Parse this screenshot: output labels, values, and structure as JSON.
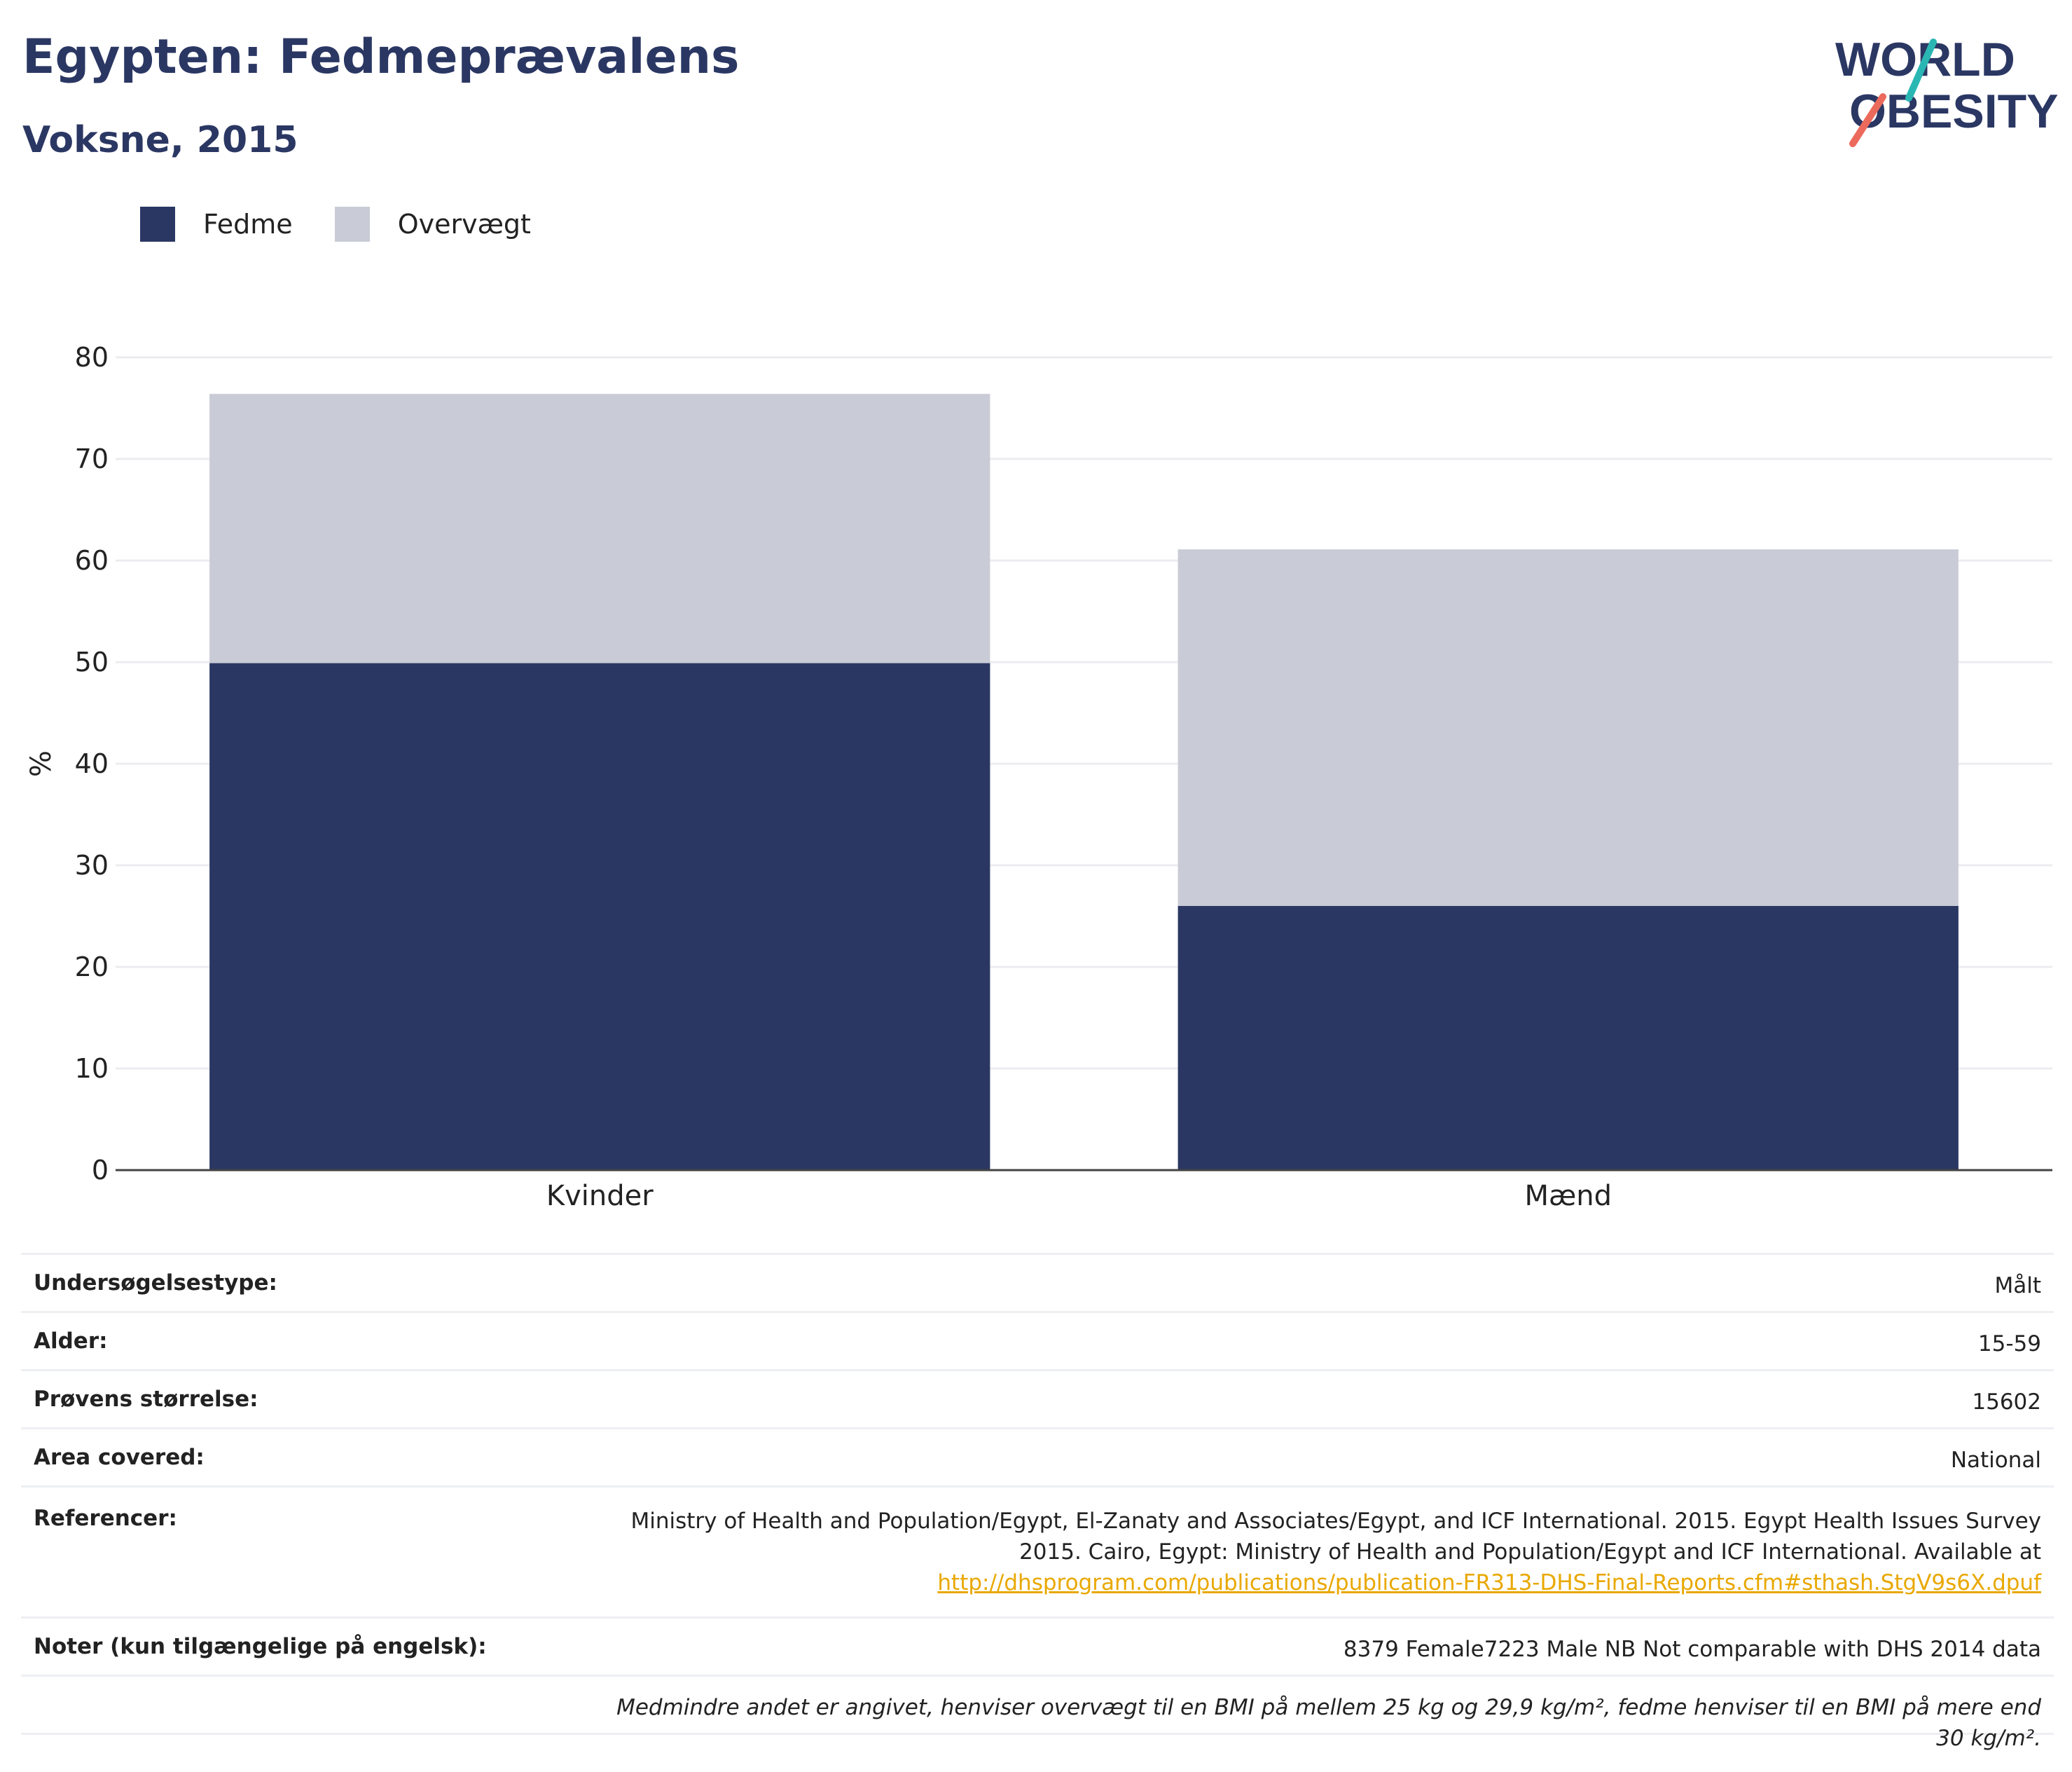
{
  "header": {
    "title": "Egypten: Fedmeprævalens",
    "subtitle": "Voksne, 2015",
    "logo_line1": "WORLD",
    "logo_line2": "OBESITY"
  },
  "colors": {
    "obesity": "#2b3763",
    "overweight": "#c9cbd6",
    "title": "#2b3763",
    "link": "#e9a800",
    "logo_teal": "#2ab7b3",
    "logo_coral": "#ec6a5c"
  },
  "chart_data": {
    "type": "bar",
    "stacked": true,
    "categories": [
      "Kvinder",
      "Mænd"
    ],
    "series": [
      {
        "name": "Fedme",
        "values": [
          49.9,
          26.0
        ]
      },
      {
        "name": "Overvægt",
        "values": [
          26.5,
          35.1
        ]
      }
    ],
    "ylabel": "%",
    "xlabel": "",
    "ylim": [
      0,
      80
    ],
    "yticks": [
      0,
      10,
      20,
      30,
      40,
      50,
      60,
      70,
      80
    ],
    "grid": true,
    "legend": "top-left"
  },
  "info": {
    "survey_type_label": "Undersøgelsestype:",
    "survey_type_value": "Målt",
    "age_label": "Alder:",
    "age_value": "15-59",
    "sample_label": "Prøvens størrelse:",
    "sample_value": "15602",
    "area_label": "Area covered:",
    "area_value": "National",
    "ref_label": "Referencer:",
    "ref_text": "Ministry of Health and Population/Egypt, El-Zanaty and Associates/Egypt, and ICF International. 2015. Egypt Health Issues Survey 2015. Cairo, Egypt: Ministry of Health and Population/Egypt and ICF International. Available at",
    "ref_link": "http://dhsprogram.com/publications/publication-FR313-DHS-Final-Reports.cfm#sthash.StgV9s6X.dpuf",
    "notes_label": "Noter (kun tilgængelige på engelsk):",
    "notes_value": "8379 Female7223 Male NB Not comparable with DHS 2014 data",
    "footnote": "Medmindre andet er angivet, henviser overvægt til en BMI på mellem 25 kg og 29,9 kg/m², fedme henviser til en BMI på mere end 30 kg/m²."
  }
}
